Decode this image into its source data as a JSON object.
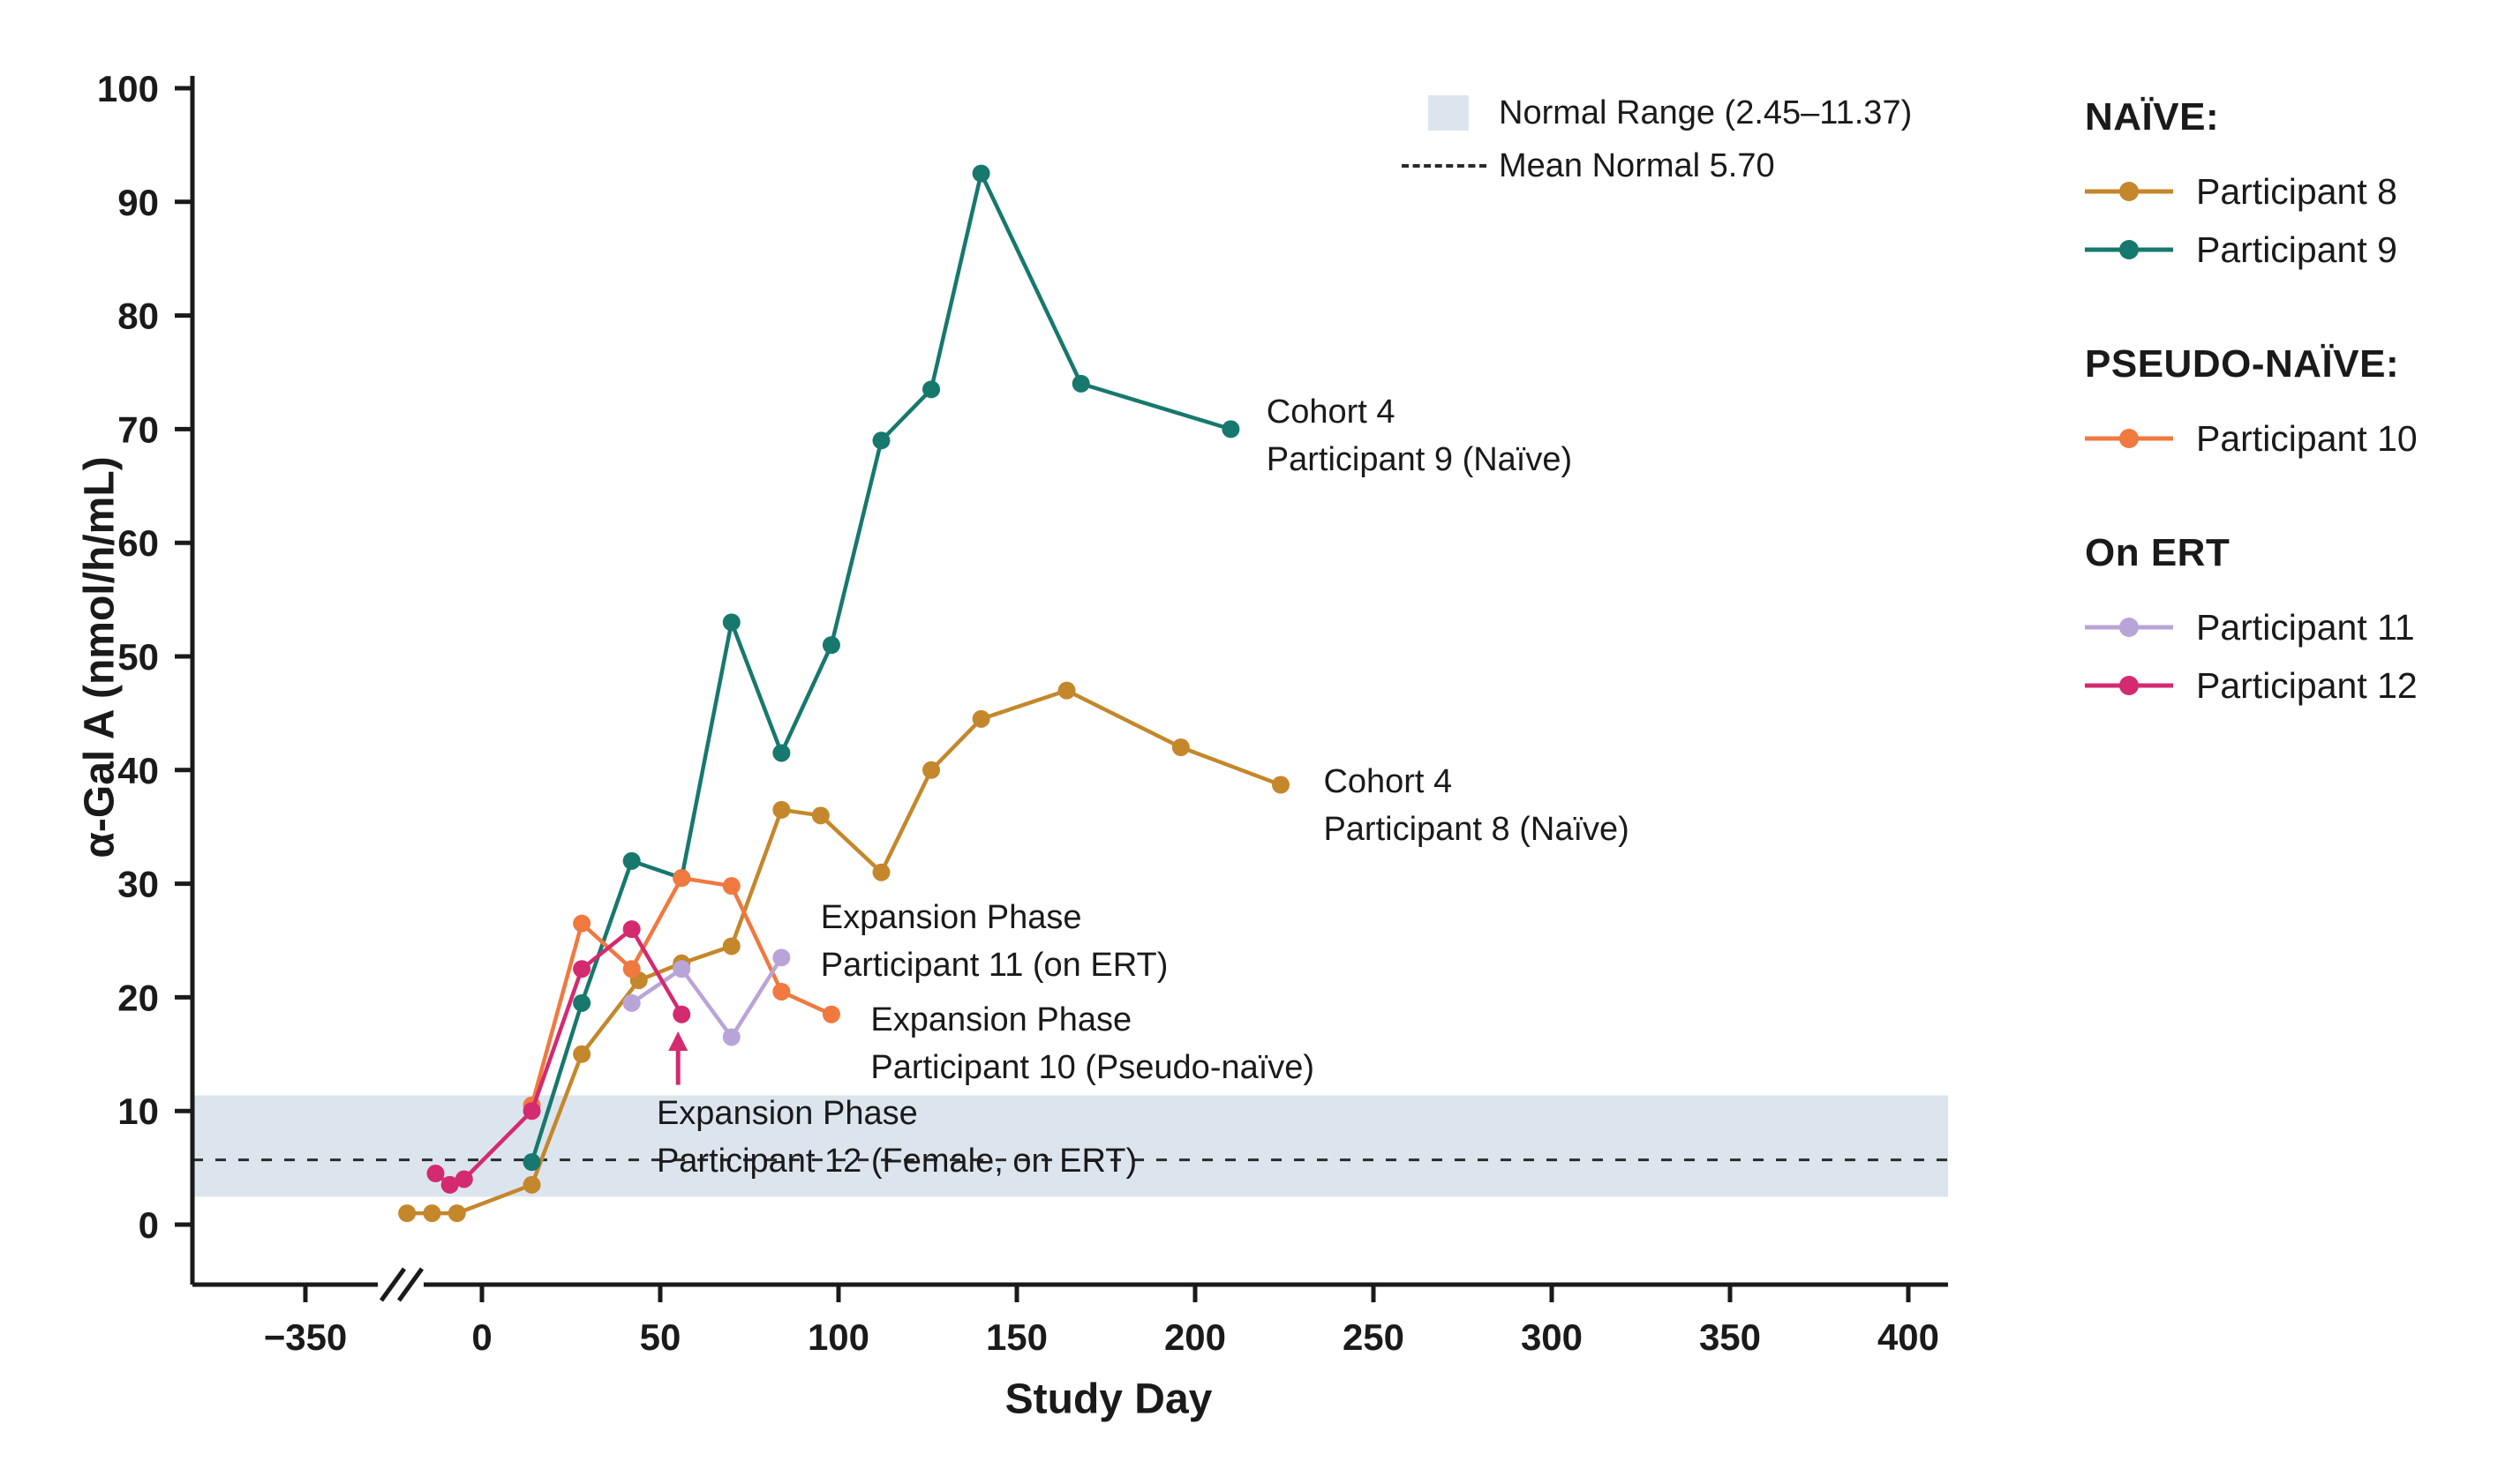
{
  "colors": {
    "normal_range": "#DCE5EE",
    "mean_line": "#2B2B2B",
    "axis": "#1A1A1A"
  },
  "figure": {
    "x_axis_label": "Study Day",
    "y_axis_label": "α-Gal A (nmol/h/mL)"
  },
  "inner_legend": {
    "normal_range_label": "Normal Range (2.45–11.37)",
    "mean_normal_label": "Mean Normal 5.70"
  },
  "side_legend": {
    "groups": [
      {
        "header": "NAÏVE:",
        "items": [
          {
            "label": "Participant 8"
          },
          {
            "label": "Participant 9"
          }
        ]
      },
      {
        "header": "PSEUDO-NAÏVE:",
        "items": [
          {
            "label": "Participant 10"
          }
        ]
      },
      {
        "header": "On ERT",
        "items": [
          {
            "label": "Participant 11"
          },
          {
            "label": "Participant 12"
          }
        ]
      }
    ]
  },
  "annotations": [
    {
      "lines": [
        "Cohort 4",
        "Participant 9 (Naïve)"
      ],
      "day": 220,
      "value": 73.5
    },
    {
      "lines": [
        "Cohort 4",
        "Participant 8 (Naïve)"
      ],
      "day": 236,
      "value": 41.0
    },
    {
      "lines": [
        "Expansion Phase",
        "Participant 11 (on ERT)"
      ],
      "day": 95,
      "value": 29.0
    },
    {
      "lines": [
        "Expansion Phase",
        "Participant 10 (Pseudo-naïve)"
      ],
      "day": 109,
      "value": 20.0
    },
    {
      "lines": [
        "Expansion Phase",
        "Participant 12 (Female, on ERT)"
      ],
      "day": 49,
      "value": 11.8
    }
  ],
  "chart_data": {
    "type": "line",
    "title": "",
    "xlabel": "Study Day",
    "ylabel": "α-Gal A (nmol/h/mL)",
    "ylim": [
      0,
      100
    ],
    "x_ticks": [
      -350,
      0,
      50,
      100,
      150,
      200,
      250,
      300,
      350,
      400
    ],
    "y_ticks": [
      0,
      10,
      20,
      30,
      40,
      50,
      60,
      70,
      80,
      90,
      100
    ],
    "x_axis_break": true,
    "grid": false,
    "legend_position": "right",
    "normal_range": [
      2.45,
      11.37
    ],
    "mean_normal": 5.7,
    "arrow": {
      "day": 55,
      "from_value": 12.3,
      "to_value": 17.0,
      "color": "#D42A6F"
    },
    "series": [
      {
        "name": "Participant 8",
        "group": "Naïve",
        "color": "#C5872B",
        "x": [
          -21,
          -14,
          -7,
          14,
          28,
          44,
          56,
          70,
          84,
          95,
          112,
          126,
          140,
          164,
          196,
          224
        ],
        "y": [
          1,
          1,
          1,
          3.5,
          15,
          21.5,
          23,
          24.5,
          36.5,
          36,
          31,
          40,
          44.5,
          47,
          42,
          38.7
        ]
      },
      {
        "name": "Participant 9",
        "group": "Naïve",
        "color": "#17786D",
        "x": [
          14,
          28,
          42,
          56,
          70,
          84,
          98,
          112,
          126,
          140,
          168,
          210
        ],
        "y": [
          5.5,
          19.5,
          32,
          30.5,
          53,
          41.5,
          51,
          69,
          73.5,
          92.5,
          74,
          70
        ]
      },
      {
        "name": "Participant 10",
        "group": "Pseudo-naïve",
        "color": "#F0793F",
        "x": [
          14,
          28,
          42,
          56,
          70,
          84,
          98
        ],
        "y": [
          10.5,
          26.5,
          22.5,
          30.5,
          29.8,
          20.5,
          18.5
        ]
      },
      {
        "name": "Participant 11",
        "group": "On ERT",
        "color": "#B9A4D8",
        "x": [
          42,
          56,
          70,
          84
        ],
        "y": [
          19.5,
          22.5,
          16.5,
          23.5
        ]
      },
      {
        "name": "Participant 12",
        "group": "On ERT",
        "color": "#D42A6F",
        "x": [
          -13,
          -9,
          -5,
          14,
          28,
          42,
          56
        ],
        "y": [
          4.5,
          3.5,
          4,
          10,
          22.5,
          26,
          18.5
        ]
      }
    ]
  }
}
